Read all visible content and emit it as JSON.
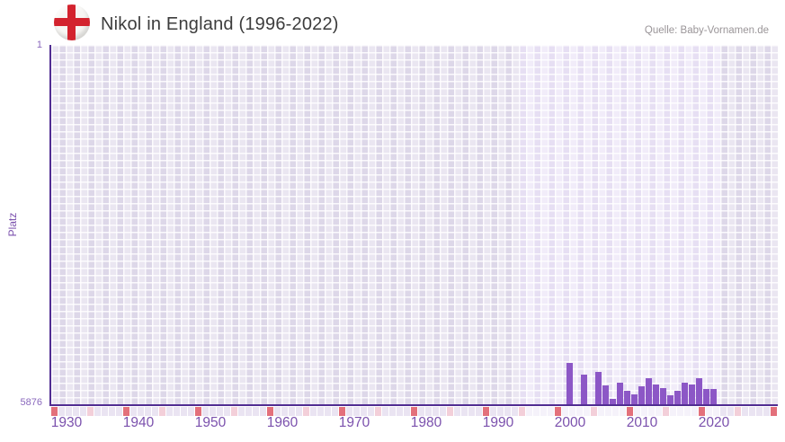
{
  "header": {
    "title": "Nikol in England (1996-2022)",
    "source": "Quelle: Baby-Vornamen.de"
  },
  "chart_data": {
    "type": "bar",
    "title": "Nikol in England (1996-2022)",
    "xlabel": "",
    "ylabel": "Platz",
    "y_axis": {
      "top_label": "1",
      "bottom_label": "5876",
      "min": 1,
      "max": 5876,
      "inverted": true
    },
    "x_axis": {
      "tick_labels": [
        "1930",
        "1940",
        "1950",
        "1960",
        "1970",
        "1980",
        "1990",
        "2000",
        "2010",
        "2020"
      ],
      "axis_year_range": [
        1928,
        2029
      ]
    },
    "grid": true,
    "legend": "none",
    "highlight_band_years": [
      1993,
      2021
    ],
    "series": [
      {
        "name": "Platz",
        "points": [
          {
            "year": 2000,
            "rank": 5200
          },
          {
            "year": 2002,
            "rank": 5390
          },
          {
            "year": 2004,
            "rank": 5350
          },
          {
            "year": 2005,
            "rank": 5565
          },
          {
            "year": 2006,
            "rank": 5790
          },
          {
            "year": 2007,
            "rank": 5530
          },
          {
            "year": 2008,
            "rank": 5650
          },
          {
            "year": 2009,
            "rank": 5720
          },
          {
            "year": 2010,
            "rank": 5580
          },
          {
            "year": 2011,
            "rank": 5455
          },
          {
            "year": 2012,
            "rank": 5550
          },
          {
            "year": 2013,
            "rank": 5610
          },
          {
            "year": 2014,
            "rank": 5725
          },
          {
            "year": 2015,
            "rank": 5650
          },
          {
            "year": 2016,
            "rank": 5525
          },
          {
            "year": 2017,
            "rank": 5545
          },
          {
            "year": 2018,
            "rank": 5455
          },
          {
            "year": 2019,
            "rank": 5620
          },
          {
            "year": 2020,
            "rank": 5620
          }
        ]
      }
    ],
    "years_without_rank": [
      1996,
      1997,
      1998,
      1999,
      2001,
      2003,
      2021,
      2022
    ]
  },
  "colors": {
    "bar": "#8c57c6",
    "axis_line": "#512d92",
    "tick_label": "#7b51ad",
    "axis_value_label": "#8a68bd",
    "title_text": "#3c3c3c",
    "source_text": "#9a9598",
    "plot_bg_outer": "#e2ddec",
    "plot_bg_band": "#ece5f7",
    "strip_red": "#e3707b",
    "strip_pink": "#f3cfd9",
    "strip_lavender": "#eae4f2",
    "strip_band": "#f5f2fa",
    "flag_red": "#d3232e",
    "flag_white": "#f7f6f3"
  }
}
